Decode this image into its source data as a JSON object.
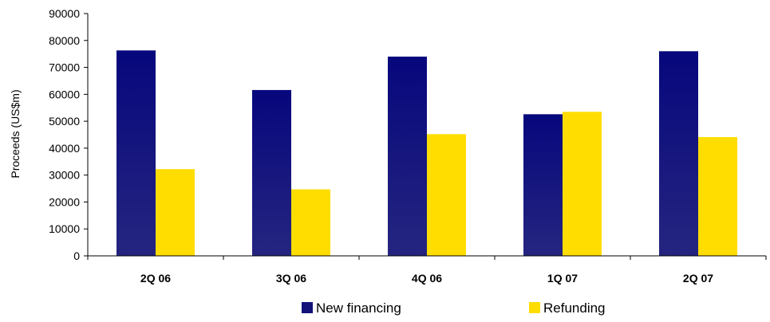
{
  "chart_data": {
    "type": "bar",
    "title": "",
    "xlabel": "",
    "ylabel": "Proceeds (US$m)",
    "ylim": [
      0,
      90000
    ],
    "yticks": [
      0,
      10000,
      20000,
      30000,
      40000,
      50000,
      60000,
      70000,
      80000,
      90000
    ],
    "categories": [
      "2Q 06",
      "3Q 06",
      "4Q 06",
      "1Q 07",
      "2Q 07"
    ],
    "series": [
      {
        "name": "New financing",
        "color": "#13137a",
        "values": [
          76300,
          61600,
          74000,
          52600,
          76000
        ]
      },
      {
        "name": "Refunding",
        "color": "#ffdd00",
        "values": [
          32200,
          24700,
          45200,
          53500,
          44100
        ]
      }
    ],
    "legend_position": "bottom-center",
    "grid": false
  }
}
